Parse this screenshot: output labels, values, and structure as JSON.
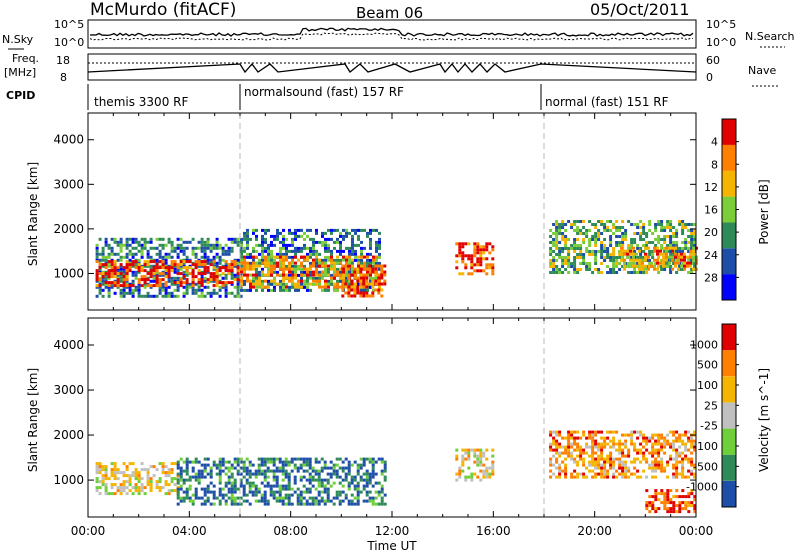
{
  "header": {
    "station": "McMurdo (fitACF)",
    "beam": "Beam 06",
    "date": "05/Oct/2011"
  },
  "noise_panel": {
    "left_label": "N.Sky",
    "right_label": "N.Search",
    "left_ticks": [
      "10^5",
      "10^0"
    ],
    "right_ticks": [
      "10^5",
      "10^0"
    ]
  },
  "freq_panel": {
    "left_label_1": "Freq.",
    "left_label_2": "[MHz]",
    "right_label": "Nave",
    "left_ticks": [
      "18",
      "8"
    ],
    "right_ticks": [
      "60",
      "0"
    ]
  },
  "cpid": {
    "label": "CPID",
    "segments": [
      {
        "label": "themis 3300 RF",
        "start_hr": 0
      },
      {
        "label": "normalsound (fast) 157 RF",
        "start_hr": 6
      },
      {
        "label": "normal (fast) 151 RF",
        "start_hr": 18
      }
    ]
  },
  "chart_data": [
    {
      "type": "heatmap",
      "title": "",
      "xlabel": "",
      "ylabel": "Slant Range [km]",
      "xlim": [
        0,
        24
      ],
      "ylim": [
        180,
        4600
      ],
      "y_ticks": [
        1000,
        2000,
        3000,
        4000
      ],
      "colorbar": {
        "label": "Power [dB]",
        "ticks": [
          "4",
          "8",
          "12",
          "16",
          "20",
          "24",
          "28"
        ],
        "colors": [
          "#0000ff",
          "#1e4fa8",
          "#2e8b57",
          "#7ccd3a",
          "#f4b400",
          "#ff7f00",
          "#e00000"
        ]
      },
      "bands": [
        {
          "x0": 0.3,
          "x1": 6.0,
          "y0": 500,
          "y1": 1800,
          "level": 2
        },
        {
          "x0": 0.3,
          "x1": 6.0,
          "y0": 700,
          "y1": 1300,
          "level": 6
        },
        {
          "x0": 6.0,
          "x1": 11.5,
          "y0": 600,
          "y1": 2000,
          "level": 2
        },
        {
          "x0": 6.0,
          "x1": 11.5,
          "y0": 700,
          "y1": 1400,
          "level": 5
        },
        {
          "x0": 10.0,
          "x1": 11.7,
          "y0": 500,
          "y1": 1200,
          "level": 6
        },
        {
          "x0": 14.5,
          "x1": 16.0,
          "y0": 1000,
          "y1": 1700,
          "level": 6
        },
        {
          "x0": 18.2,
          "x1": 24.0,
          "y0": 1000,
          "y1": 2200,
          "level": 3
        },
        {
          "x0": 21.0,
          "x1": 24.0,
          "y0": 1100,
          "y1": 1600,
          "level": 5
        }
      ]
    },
    {
      "type": "heatmap",
      "title": "",
      "xlabel": "Time UT",
      "ylabel": "Slant Range [km]",
      "xlim": [
        0,
        24
      ],
      "ylim": [
        180,
        4600
      ],
      "y_ticks": [
        1000,
        2000,
        3000,
        4000
      ],
      "x_ticks": [
        "00:00",
        "04:00",
        "08:00",
        "12:00",
        "16:00",
        "20:00",
        "00:00"
      ],
      "colorbar": {
        "label": "Velocity [m s^-1]",
        "ticks": [
          "1000",
          "500",
          "100",
          "25",
          "-25",
          "-100",
          "-500",
          "-1000"
        ],
        "colors": [
          "#1e4fa8",
          "#2e8b57",
          "#6fcf3a",
          "#c0c0c0",
          "#f4b400",
          "#ff7f00",
          "#e00000"
        ]
      },
      "bands": [
        {
          "x0": 0.3,
          "x1": 3.5,
          "y0": 700,
          "y1": 1400,
          "level": 4
        },
        {
          "x0": 3.5,
          "x1": 11.7,
          "y0": 500,
          "y1": 1500,
          "level": 1
        },
        {
          "x0": 14.5,
          "x1": 16.0,
          "y0": 1000,
          "y1": 1700,
          "level": 4
        },
        {
          "x0": 18.2,
          "x1": 24.0,
          "y0": 1100,
          "y1": 2100,
          "level": 5
        },
        {
          "x0": 22.0,
          "x1": 24.0,
          "y0": 300,
          "y1": 800,
          "level": 6
        }
      ]
    }
  ]
}
